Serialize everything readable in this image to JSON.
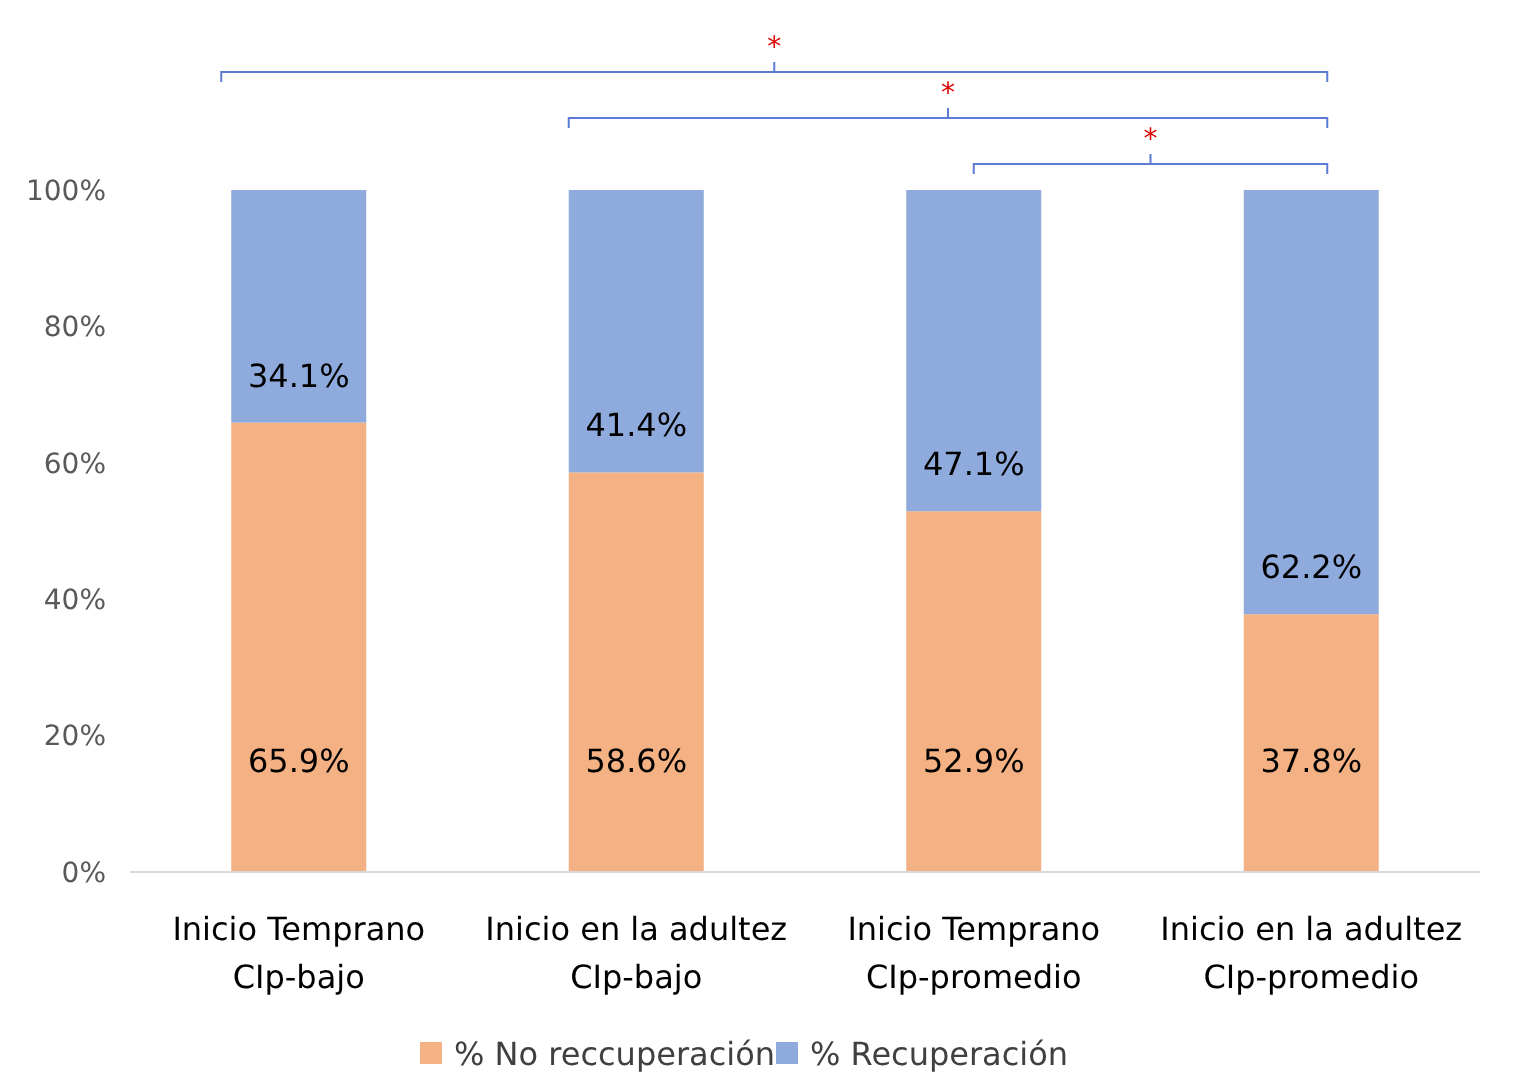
{
  "chart_data": {
    "type": "bar",
    "stacked": true,
    "categories": [
      "Inicio Temprano\nCIp-bajo",
      "Inicio en la adultez\nCIp-bajo",
      "Inicio Temprano\nCIp-promedio",
      "Inicio en la adultez\nCIp-promedio"
    ],
    "series": [
      {
        "name": "% No reccuperación",
        "color": "#f4b183",
        "values": [
          65.9,
          58.6,
          52.9,
          37.8
        ],
        "value_labels": [
          "65.9%",
          "58.6%",
          "52.9%",
          "37.8%"
        ]
      },
      {
        "name": "% Recuperación",
        "color": "#8faadc",
        "values": [
          34.1,
          41.4,
          47.1,
          62.2
        ],
        "value_labels": [
          "34.1%",
          "41.4%",
          "47.1%",
          "62.2%"
        ]
      }
    ],
    "ylim": [
      0,
      100
    ],
    "yticks": [
      {
        "value": 0,
        "label": "0%"
      },
      {
        "value": 20,
        "label": "20%"
      },
      {
        "value": 40,
        "label": "40%"
      },
      {
        "value": 60,
        "label": "60%"
      },
      {
        "value": 80,
        "label": "80%"
      },
      {
        "value": 100,
        "label": "100%"
      }
    ],
    "grid": false,
    "legend": "bottom",
    "annotations": [
      "*",
      "*",
      "*"
    ]
  }
}
